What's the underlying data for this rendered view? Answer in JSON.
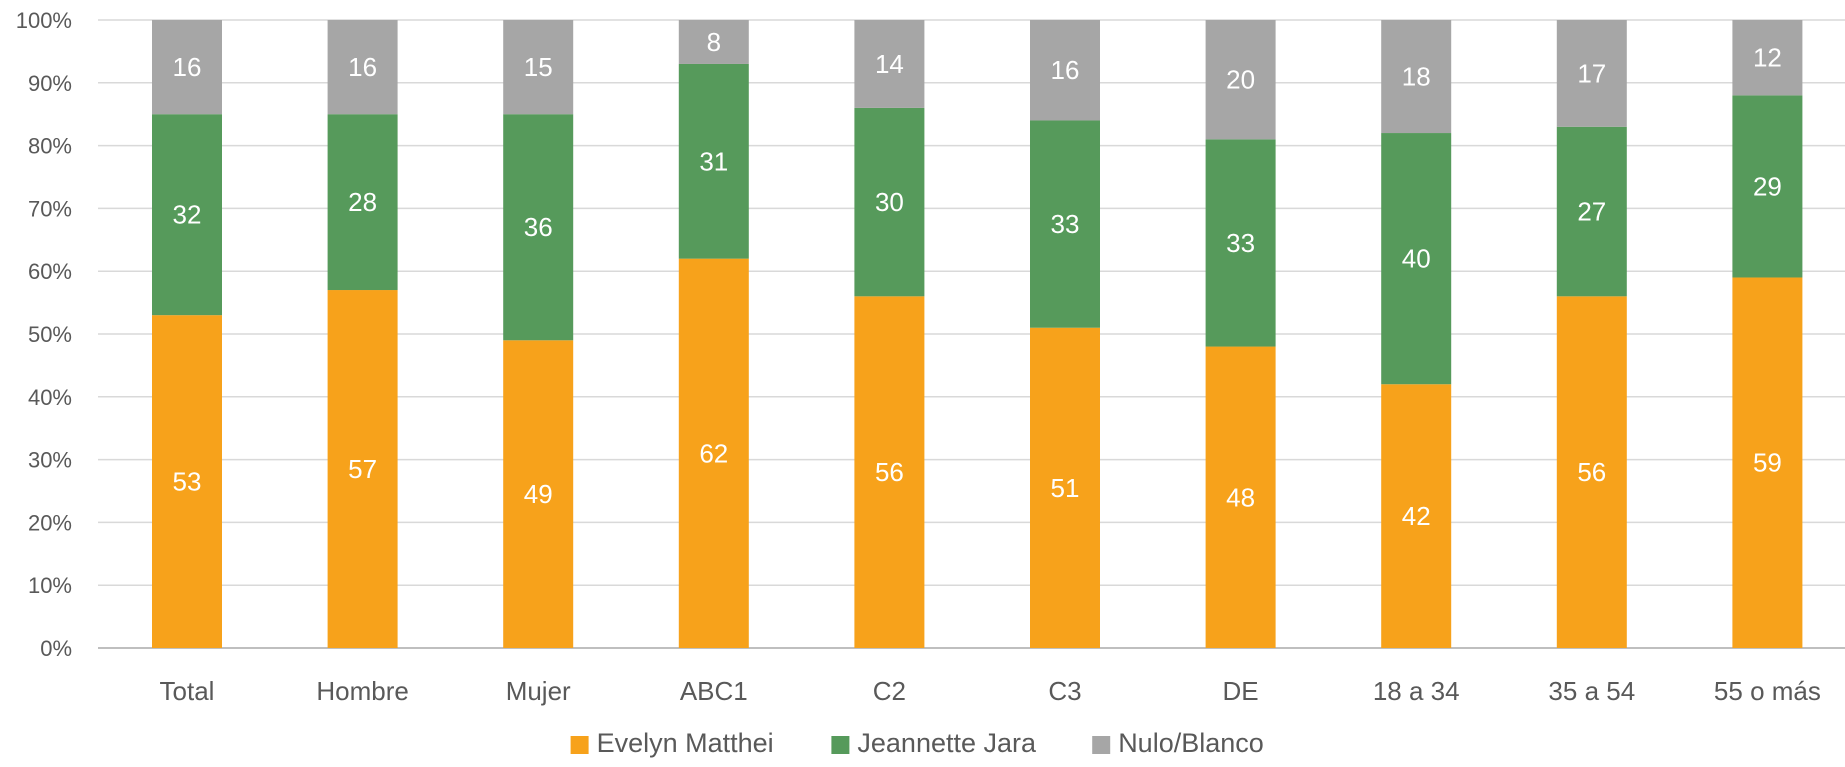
{
  "chart_data": {
    "type": "bar",
    "stacked": true,
    "categories": [
      "Total",
      "Hombre",
      "Mujer",
      "ABC1",
      "C2",
      "C3",
      "DE",
      "18 a 34",
      "35 a 54",
      "55 o más"
    ],
    "series": [
      {
        "name": "Evelyn Matthei",
        "color": "#F7A21B",
        "values": [
          53,
          57,
          49,
          62,
          56,
          51,
          48,
          42,
          56,
          59
        ]
      },
      {
        "name": "Jeannette Jara",
        "color": "#569A5B",
        "values": [
          32,
          28,
          36,
          31,
          30,
          33,
          33,
          40,
          27,
          29
        ]
      },
      {
        "name": "Nulo/Blanco",
        "color": "#A6A6A6",
        "values": [
          16,
          16,
          15,
          8,
          14,
          16,
          20,
          18,
          17,
          12
        ]
      }
    ],
    "y_ticks": [
      "0%",
      "10%",
      "20%",
      "30%",
      "40%",
      "50%",
      "60%",
      "70%",
      "80%",
      "90%",
      "100%"
    ],
    "ylim": [
      0,
      100
    ],
    "grid": true,
    "legend_position": "bottom"
  }
}
